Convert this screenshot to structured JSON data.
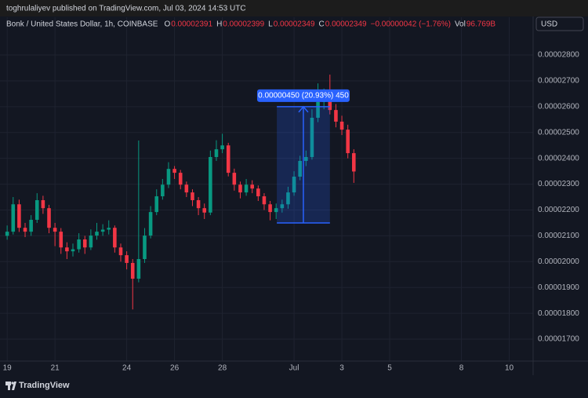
{
  "header": {
    "text": "toghrulaliyev published on TradingView.com, Jul 03, 2024 14:53 UTC"
  },
  "footer": {
    "brand": "TradingView"
  },
  "currency": "USD",
  "legend": {
    "title": "Bonk / United States Dollar, 1h, COINBASE",
    "items": [
      {
        "key": "O",
        "value": "0.00002391"
      },
      {
        "key": "H",
        "value": "0.00002399"
      },
      {
        "key": "L",
        "value": "0.00002349"
      },
      {
        "key": "C",
        "value": "0.00002349"
      }
    ],
    "change": "−0.00000042 (−1.76%)",
    "volume": {
      "key": "Vol",
      "value": "96.769B"
    }
  },
  "chart_data": {
    "type": "candlestick",
    "up_color": "#089981",
    "down_color": "#f23645",
    "grid": true,
    "xlim": [
      -0.3,
      22
    ],
    "ylim": [
      1.615e-05,
      2.946e-05
    ],
    "xticks": [
      {
        "value": 0,
        "label": "19"
      },
      {
        "value": 2,
        "label": "21"
      },
      {
        "value": 5,
        "label": "24"
      },
      {
        "value": 7,
        "label": "26"
      },
      {
        "value": 9,
        "label": "28"
      },
      {
        "value": 12,
        "label": "Jul"
      },
      {
        "value": 14,
        "label": "3"
      },
      {
        "value": 16,
        "label": "5"
      },
      {
        "value": 19,
        "label": "8"
      },
      {
        "value": 21,
        "label": "10"
      }
    ],
    "yticks": [
      {
        "value": 1.7e-05,
        "label": "0.00001700"
      },
      {
        "value": 1.8e-05,
        "label": "0.00001800"
      },
      {
        "value": 1.9e-05,
        "label": "0.00001900"
      },
      {
        "value": 2e-05,
        "label": "0.00002000"
      },
      {
        "value": 2.1e-05,
        "label": "0.00002100"
      },
      {
        "value": 2.2e-05,
        "label": "0.00002200"
      },
      {
        "value": 2.3e-05,
        "label": "0.00002300"
      },
      {
        "value": 2.4e-05,
        "label": "0.00002400"
      },
      {
        "value": 2.5e-05,
        "label": "0.00002500"
      },
      {
        "value": 2.6e-05,
        "label": "0.00002600"
      },
      {
        "value": 2.7e-05,
        "label": "0.00002700"
      },
      {
        "value": 2.8e-05,
        "label": "0.00002800"
      }
    ],
    "x": [
      0,
      0.25,
      0.5,
      0.75,
      1,
      1.25,
      1.5,
      1.75,
      2,
      2.25,
      2.5,
      2.75,
      3,
      3.25,
      3.5,
      3.75,
      4,
      4.25,
      4.5,
      4.75,
      5,
      5.25,
      5.5,
      5.75,
      6,
      6.25,
      6.5,
      6.75,
      7,
      7.25,
      7.5,
      7.75,
      8,
      8.25,
      8.5,
      8.75,
      9,
      9.25,
      9.5,
      9.75,
      10,
      10.25,
      10.5,
      10.75,
      11,
      11.25,
      11.5,
      11.75,
      12,
      12.25,
      12.5,
      12.75,
      13,
      13.25,
      13.5,
      13.75,
      14,
      14.25,
      14.5
    ],
    "open": [
      2.1e-05,
      2.116e-05,
      2.222e-05,
      2.131e-05,
      2.116e-05,
      2.162e-05,
      2.238e-05,
      2.207e-05,
      2.131e-05,
      2.116e-05,
      2.055e-05,
      2.04e-05,
      2.048e-05,
      2.086e-05,
      2.055e-05,
      2.101e-05,
      2.116e-05,
      2.124e-05,
      2.131e-05,
      2.055e-05,
      2.025e-05,
      1.995e-05,
      1.934e-05,
      2.01e-05,
      2.101e-05,
      2.192e-05,
      2.253e-05,
      2.298e-05,
      2.359e-05,
      2.344e-05,
      2.298e-05,
      2.268e-05,
      2.238e-05,
      2.207e-05,
      2.19e-05,
      2.405e-05,
      2.435e-05,
      2.45e-05,
      2.344e-05,
      2.298e-05,
      2.268e-05,
      2.298e-05,
      2.283e-05,
      2.253e-05,
      2.222e-05,
      2.192e-05,
      2.207e-05,
      2.222e-05,
      2.268e-05,
      2.329e-05,
      2.39e-05,
      2.405e-05,
      2.557e-05,
      2.618e-05,
      2.633e-05,
      2.587e-05,
      2.542e-05,
      2.511e-05,
      2.42e-05
    ],
    "high": [
      2.14e-05,
      2.25e-05,
      2.24e-05,
      2.15e-05,
      2.18e-05,
      2.265e-05,
      2.255e-05,
      2.22e-05,
      2.15e-05,
      2.13e-05,
      2.075e-05,
      2.07e-05,
      2.11e-05,
      2.1e-05,
      2.125e-05,
      2.15e-05,
      2.145e-05,
      2.16e-05,
      2.14e-05,
      2.07e-05,
      2.04e-05,
      2.01e-05,
      2.469e-05,
      2.13e-05,
      2.215e-05,
      2.28e-05,
      2.32e-05,
      2.385e-05,
      2.37e-05,
      2.355e-05,
      2.31e-05,
      2.28e-05,
      2.25e-05,
      2.225e-05,
      2.43e-05,
      2.47e-05,
      2.495e-05,
      2.46e-05,
      2.36e-05,
      2.31e-05,
      2.32e-05,
      2.315e-05,
      2.295e-05,
      2.265e-05,
      2.235e-05,
      2.225e-05,
      2.24e-05,
      2.29e-05,
      2.35e-05,
      2.41e-05,
      2.43e-05,
      2.59e-05,
      2.69e-05,
      2.67e-05,
      2.724e-05,
      2.61e-05,
      2.565e-05,
      2.53e-05,
      2.435e-05
    ],
    "low": [
      2.085e-05,
      2.105e-05,
      2.115e-05,
      2.095e-05,
      2.1e-05,
      2.15e-05,
      2.185e-05,
      2.11e-05,
      2.06e-05,
      2.03e-05,
      2.01e-05,
      2.02e-05,
      2.035e-05,
      2.03e-05,
      2.045e-05,
      2.085e-05,
      2.1e-05,
      2.105e-05,
      2.035e-05,
      2e-05,
      1.97e-05,
      1.815e-05,
      1.92e-05,
      1.995e-05,
      2.09e-05,
      2.18e-05,
      2.24e-05,
      2.285e-05,
      2.32e-05,
      2.28e-05,
      2.25e-05,
      2.215e-05,
      2.18e-05,
      2.165e-05,
      2.18e-05,
      2.39e-05,
      2.42e-05,
      2.33e-05,
      2.275e-05,
      2.245e-05,
      2.255e-05,
      2.265e-05,
      2.235e-05,
      2.2e-05,
      2.16e-05,
      2.165e-05,
      2.19e-05,
      2.205e-05,
      2.255e-05,
      2.315e-05,
      2.37e-05,
      2.395e-05,
      2.54e-05,
      2.59e-05,
      2.57e-05,
      2.52e-05,
      2.49e-05,
      2.4e-05,
      2.305e-05
    ],
    "close": [
      2.116e-05,
      2.222e-05,
      2.131e-05,
      2.116e-05,
      2.162e-05,
      2.238e-05,
      2.207e-05,
      2.131e-05,
      2.116e-05,
      2.055e-05,
      2.04e-05,
      2.048e-05,
      2.086e-05,
      2.055e-05,
      2.101e-05,
      2.116e-05,
      2.124e-05,
      2.131e-05,
      2.055e-05,
      2.025e-05,
      1.995e-05,
      1.934e-05,
      2.01e-05,
      2.101e-05,
      2.192e-05,
      2.253e-05,
      2.298e-05,
      2.359e-05,
      2.344e-05,
      2.298e-05,
      2.268e-05,
      2.238e-05,
      2.207e-05,
      2.19e-05,
      2.405e-05,
      2.435e-05,
      2.45e-05,
      2.344e-05,
      2.298e-05,
      2.268e-05,
      2.298e-05,
      2.283e-05,
      2.253e-05,
      2.222e-05,
      2.192e-05,
      2.207e-05,
      2.222e-05,
      2.268e-05,
      2.329e-05,
      2.39e-05,
      2.405e-05,
      2.557e-05,
      2.618e-05,
      2.633e-05,
      2.587e-05,
      2.542e-05,
      2.511e-05,
      2.42e-05,
      2.349e-05
    ],
    "measure": {
      "label": "0.00000450 (20.93%) 450",
      "x": [
        11.28,
        13.5
      ],
      "y": [
        2.15e-05,
        2.6e-05
      ],
      "color": "#2962ff"
    }
  }
}
